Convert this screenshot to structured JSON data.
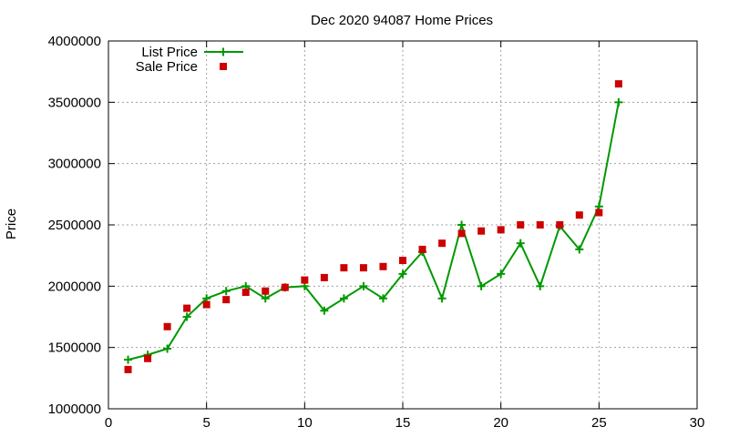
{
  "chart_data": {
    "type": "line",
    "title": "Dec 2020 94087 Home Prices",
    "xlabel": "",
    "ylabel": "Price",
    "xlim": [
      0,
      30
    ],
    "ylim": [
      1000000,
      4000000
    ],
    "x_ticks": [
      0,
      5,
      10,
      15,
      20,
      25,
      30
    ],
    "y_ticks": [
      1000000,
      1500000,
      2000000,
      2500000,
      3000000,
      3500000,
      4000000
    ],
    "grid": true,
    "legend_position": "top-left",
    "series": [
      {
        "name": "List Price",
        "style": "line-with-plus-markers",
        "color": "#009900",
        "x": [
          1,
          2,
          3,
          4,
          5,
          6,
          7,
          8,
          9,
          10,
          11,
          12,
          13,
          14,
          15,
          16,
          17,
          18,
          19,
          20,
          21,
          22,
          23,
          24,
          25,
          26
        ],
        "y": [
          1400000,
          1440000,
          1490000,
          1750000,
          1900000,
          1960000,
          2000000,
          1900000,
          1990000,
          2000000,
          1800000,
          1900000,
          2000000,
          1900000,
          2100000,
          2280000,
          1900000,
          2500000,
          2000000,
          2100000,
          2350000,
          2000000,
          2490000,
          2300000,
          2650000,
          3500000
        ]
      },
      {
        "name": "Sale Price",
        "style": "square-markers",
        "color": "#cc0000",
        "x": [
          1,
          2,
          3,
          4,
          5,
          6,
          7,
          8,
          9,
          10,
          11,
          12,
          13,
          14,
          15,
          16,
          17,
          18,
          19,
          20,
          21,
          22,
          23,
          24,
          25,
          26
        ],
        "y": [
          1320000,
          1410000,
          1670000,
          1820000,
          1850000,
          1890000,
          1950000,
          1960000,
          1990000,
          2050000,
          2070000,
          2150000,
          2150000,
          2160000,
          2210000,
          2300000,
          2350000,
          2430000,
          2450000,
          2460000,
          2500000,
          2500000,
          2500000,
          2580000,
          2600000,
          3650000
        ]
      }
    ]
  }
}
